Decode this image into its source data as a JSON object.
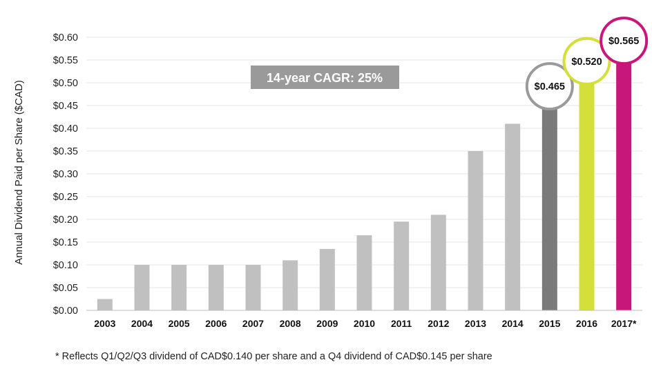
{
  "chart_data": {
    "type": "bar",
    "ylabel": "Annual Dividend Paid per Share ($CAD)",
    "categories": [
      "2003",
      "2004",
      "2005",
      "2006",
      "2007",
      "2008",
      "2009",
      "2010",
      "2011",
      "2012",
      "2013",
      "2014",
      "2015",
      "2016",
      "2017*"
    ],
    "values": [
      0.025,
      0.1,
      0.1,
      0.1,
      0.1,
      0.11,
      0.135,
      0.165,
      0.195,
      0.21,
      0.35,
      0.41,
      0.465,
      0.52,
      0.565
    ],
    "ylim": [
      0,
      0.6
    ],
    "yticks": [
      "$0.00",
      "$0.05",
      "$0.10",
      "$0.15",
      "$0.20",
      "$0.25",
      "$0.30",
      "$0.35",
      "$0.40",
      "$0.45",
      "$0.50",
      "$0.55",
      "$0.60"
    ],
    "grid": true,
    "bar_colors": {
      "default": "#c0c0c0",
      "2015": "#7a7a7a",
      "2016": "#d4df3a",
      "2017*": "#c8177a"
    },
    "data_labels": [
      {
        "category": "2015",
        "text": "$0.465",
        "ring_color": "#9a9a9a"
      },
      {
        "category": "2016",
        "text": "$0.520",
        "ring_color": "#d4df3a"
      },
      {
        "category": "2017*",
        "text": "$0.565",
        "ring_color": "#c8177a"
      }
    ],
    "annotation": {
      "text": "14-year CAGR: 25%",
      "bg_color": "#9a9a9a"
    }
  },
  "footnote": "* Reflects Q1/Q2/Q3 dividend of CAD$0.140 per share and a Q4 dividend of CAD$0.145 per share"
}
